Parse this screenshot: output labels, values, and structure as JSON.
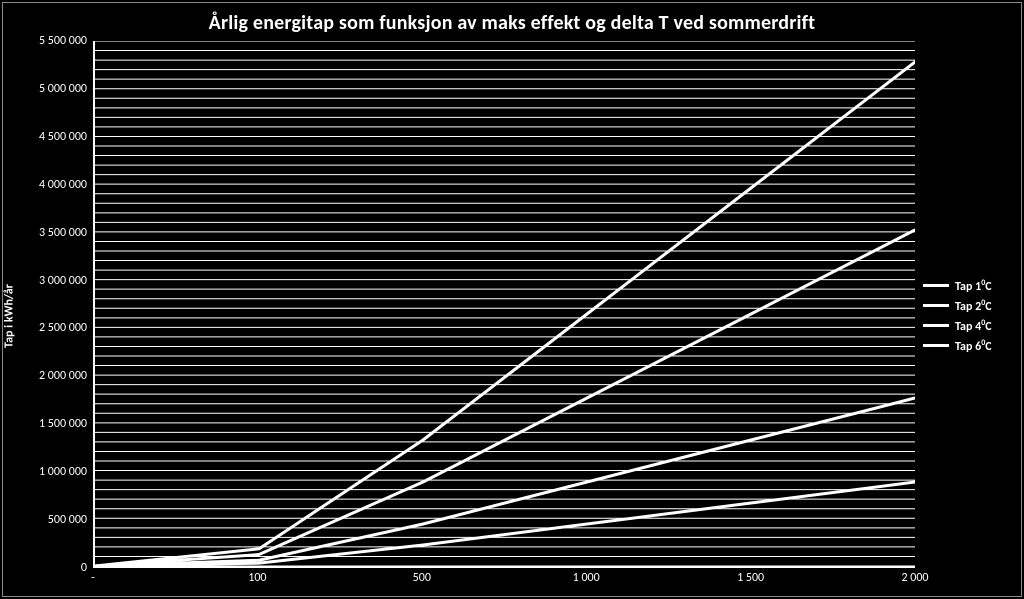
{
  "chart": {
    "type": "line",
    "title": "Årlig energitap som funksjon av maks effekt og delta T ved sommerdrift",
    "title_fontsize": 20,
    "ylabel": "Tap i kWh/år",
    "label_fontsize": 12,
    "background_color": "#000000",
    "text_color": "#ffffff",
    "grid_color": "#ffffff",
    "axis_color": "#ffffff",
    "line_color": "#ffffff",
    "line_width": 3,
    "minor_grid_step_y": 100000,
    "x": {
      "lim": [
        0,
        2000
      ],
      "ticks": [
        0,
        100,
        500,
        1000,
        1500,
        2000
      ],
      "tick_labels": [
        "-",
        "100",
        "500",
        "1 000",
        "1 500",
        "2 000"
      ]
    },
    "y": {
      "lim": [
        0,
        5500000
      ],
      "ticks": [
        0,
        500000,
        1000000,
        1500000,
        2000000,
        2500000,
        3000000,
        3500000,
        4000000,
        4500000,
        5000000,
        5500000
      ],
      "tick_labels": [
        "0",
        "500 000",
        "1 000 000",
        "1 500 000",
        "2 000 000",
        "2 500 000",
        "3 000 000",
        "3 500 000",
        "4 000 000",
        "4 500 000",
        "5 000 000",
        "5 500 000"
      ]
    },
    "series": [
      {
        "name": "Tap 1⁰C",
        "legend_html": "Tap 1<sup>0</sup>C",
        "color": "#ffffff",
        "x": [
          0,
          100,
          500,
          1000,
          1500,
          2000
        ],
        "y": [
          0,
          30000,
          220000,
          440000,
          660000,
          880000
        ]
      },
      {
        "name": "Tap 2⁰C",
        "legend_html": "Tap 2<sup>0</sup>C",
        "color": "#ffffff",
        "x": [
          0,
          100,
          500,
          1000,
          1500,
          2000
        ],
        "y": [
          0,
          60000,
          440000,
          880000,
          1320000,
          1760000
        ]
      },
      {
        "name": "Tap 4⁰C",
        "legend_html": "Tap 4<sup>0</sup>C",
        "color": "#ffffff",
        "x": [
          0,
          100,
          500,
          1000,
          1500,
          2000
        ],
        "y": [
          0,
          120000,
          880000,
          1760000,
          2640000,
          3520000
        ]
      },
      {
        "name": "Tap 6⁰C",
        "legend_html": "Tap 6<sup>0</sup>C",
        "color": "#ffffff",
        "x": [
          0,
          100,
          500,
          1000,
          1500,
          2000
        ],
        "y": [
          0,
          180000,
          1320000,
          2640000,
          3960000,
          5280000
        ]
      }
    ]
  }
}
